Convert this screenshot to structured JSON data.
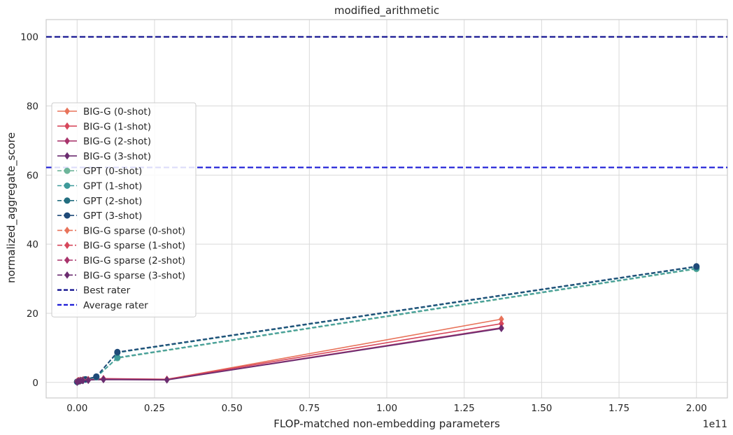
{
  "chart_data": {
    "type": "line",
    "title": "modified_arithmetic",
    "xlabel": "FLOP-matched non-embedding parameters",
    "ylabel": "normalized_aggregate_score",
    "x_offset_label": "1e11",
    "xlim": [
      -0.1,
      2.1
    ],
    "ylim": [
      -4.5,
      105
    ],
    "x_ticks": [
      0.0,
      0.25,
      0.5,
      0.75,
      1.0,
      1.25,
      1.5,
      1.75,
      2.0
    ],
    "x_tick_labels": [
      "0.00",
      "0.25",
      "0.50",
      "0.75",
      "1.00",
      "1.25",
      "1.50",
      "1.75",
      "2.00"
    ],
    "y_ticks": [
      0,
      20,
      40,
      60,
      80,
      100
    ],
    "y_tick_labels": [
      "0",
      "20",
      "40",
      "60",
      "80",
      "100"
    ],
    "grid": true,
    "legend_position": "center-left",
    "series": [
      {
        "name": "BIG-G (0-shot)",
        "color": "#e8735a",
        "style": "solid",
        "marker": "diamond",
        "points": [
          [
            0.0,
            0.2
          ],
          [
            0.002,
            0.4
          ],
          [
            0.005,
            0.5
          ],
          [
            0.01,
            0.6
          ],
          [
            0.02,
            0.7
          ],
          [
            0.036,
            0.8
          ],
          [
            0.085,
            1.0
          ],
          [
            0.29,
            0.9
          ],
          [
            1.37,
            18.3
          ]
        ]
      },
      {
        "name": "BIG-G (1-shot)",
        "color": "#d7475b",
        "style": "solid",
        "marker": "diamond",
        "points": [
          [
            0.0,
            0.1
          ],
          [
            0.002,
            0.3
          ],
          [
            0.005,
            0.4
          ],
          [
            0.01,
            0.6
          ],
          [
            0.02,
            0.7
          ],
          [
            0.036,
            0.8
          ],
          [
            0.085,
            1.1
          ],
          [
            0.29,
            0.9
          ],
          [
            1.37,
            17.0
          ]
        ]
      },
      {
        "name": "BIG-G (2-shot)",
        "color": "#a8336b",
        "style": "solid",
        "marker": "diamond",
        "points": [
          [
            0.0,
            0.1
          ],
          [
            0.002,
            0.3
          ],
          [
            0.005,
            0.5
          ],
          [
            0.01,
            0.6
          ],
          [
            0.02,
            0.7
          ],
          [
            0.036,
            0.8
          ],
          [
            0.085,
            1.0
          ],
          [
            0.29,
            0.8
          ],
          [
            1.37,
            15.8
          ]
        ]
      },
      {
        "name": "BIG-G (3-shot)",
        "color": "#6b2d70",
        "style": "solid",
        "marker": "diamond",
        "points": [
          [
            0.0,
            0.0
          ],
          [
            0.002,
            0.3
          ],
          [
            0.005,
            0.4
          ],
          [
            0.01,
            0.5
          ],
          [
            0.02,
            0.6
          ],
          [
            0.036,
            0.7
          ],
          [
            0.085,
            0.8
          ],
          [
            0.29,
            0.7
          ],
          [
            1.37,
            15.6
          ]
        ]
      },
      {
        "name": "GPT (0-shot)",
        "color": "#6db59a",
        "style": "dashed",
        "marker": "circle",
        "points": [
          [
            0.0,
            0.1
          ],
          [
            0.006,
            0.3
          ],
          [
            0.013,
            0.5
          ],
          [
            0.027,
            0.8
          ],
          [
            0.062,
            1.5
          ],
          [
            0.13,
            7.0
          ],
          [
            2.0,
            32.8
          ]
        ]
      },
      {
        "name": "GPT (1-shot)",
        "color": "#3e9a9a",
        "style": "dashed",
        "marker": "circle",
        "points": [
          [
            0.0,
            0.1
          ],
          [
            0.006,
            0.3
          ],
          [
            0.013,
            0.5
          ],
          [
            0.027,
            0.8
          ],
          [
            0.062,
            1.5
          ],
          [
            0.13,
            7.2
          ],
          [
            2.0,
            33.0
          ]
        ]
      },
      {
        "name": "GPT (2-shot)",
        "color": "#236e80",
        "style": "dashed",
        "marker": "circle",
        "points": [
          [
            0.0,
            0.2
          ],
          [
            0.006,
            0.4
          ],
          [
            0.013,
            0.6
          ],
          [
            0.027,
            0.9
          ],
          [
            0.062,
            1.6
          ],
          [
            0.13,
            8.6
          ],
          [
            2.0,
            33.4
          ]
        ]
      },
      {
        "name": "GPT (3-shot)",
        "color": "#1f4a78",
        "style": "dashed",
        "marker": "circle",
        "points": [
          [
            0.0,
            0.2
          ],
          [
            0.006,
            0.4
          ],
          [
            0.013,
            0.6
          ],
          [
            0.027,
            0.9
          ],
          [
            0.062,
            1.7
          ],
          [
            0.13,
            8.8
          ],
          [
            2.0,
            33.6
          ]
        ]
      },
      {
        "name": "BIG-G sparse (0-shot)",
        "color": "#e8735a",
        "style": "dashdot",
        "marker": "diamond",
        "points": [
          [
            0.0,
            0.3
          ],
          [
            0.004,
            0.5
          ],
          [
            0.01,
            0.6
          ],
          [
            0.018,
            0.7
          ],
          [
            0.036,
            0.8
          ]
        ]
      },
      {
        "name": "BIG-G sparse (1-shot)",
        "color": "#d7475b",
        "style": "dashdot",
        "marker": "diamond",
        "points": [
          [
            0.0,
            0.2
          ],
          [
            0.004,
            0.4
          ],
          [
            0.01,
            0.5
          ],
          [
            0.018,
            0.6
          ],
          [
            0.036,
            0.7
          ]
        ]
      },
      {
        "name": "BIG-G sparse (2-shot)",
        "color": "#a8336b",
        "style": "dashdot",
        "marker": "diamond",
        "points": [
          [
            0.0,
            0.2
          ],
          [
            0.004,
            0.4
          ],
          [
            0.01,
            0.5
          ],
          [
            0.018,
            0.6
          ],
          [
            0.036,
            0.6
          ]
        ]
      },
      {
        "name": "BIG-G sparse (3-shot)",
        "color": "#6b2d70",
        "style": "dashdot",
        "marker": "diamond",
        "points": [
          [
            0.0,
            0.1
          ],
          [
            0.004,
            0.3
          ],
          [
            0.01,
            0.4
          ],
          [
            0.018,
            0.5
          ],
          [
            0.036,
            0.6
          ]
        ]
      }
    ],
    "hlines": [
      {
        "name": "Best rater",
        "y": 100,
        "color": "#0a0a8c"
      },
      {
        "name": "Average rater",
        "y": 62.2,
        "color": "#1a1ad6"
      }
    ]
  }
}
